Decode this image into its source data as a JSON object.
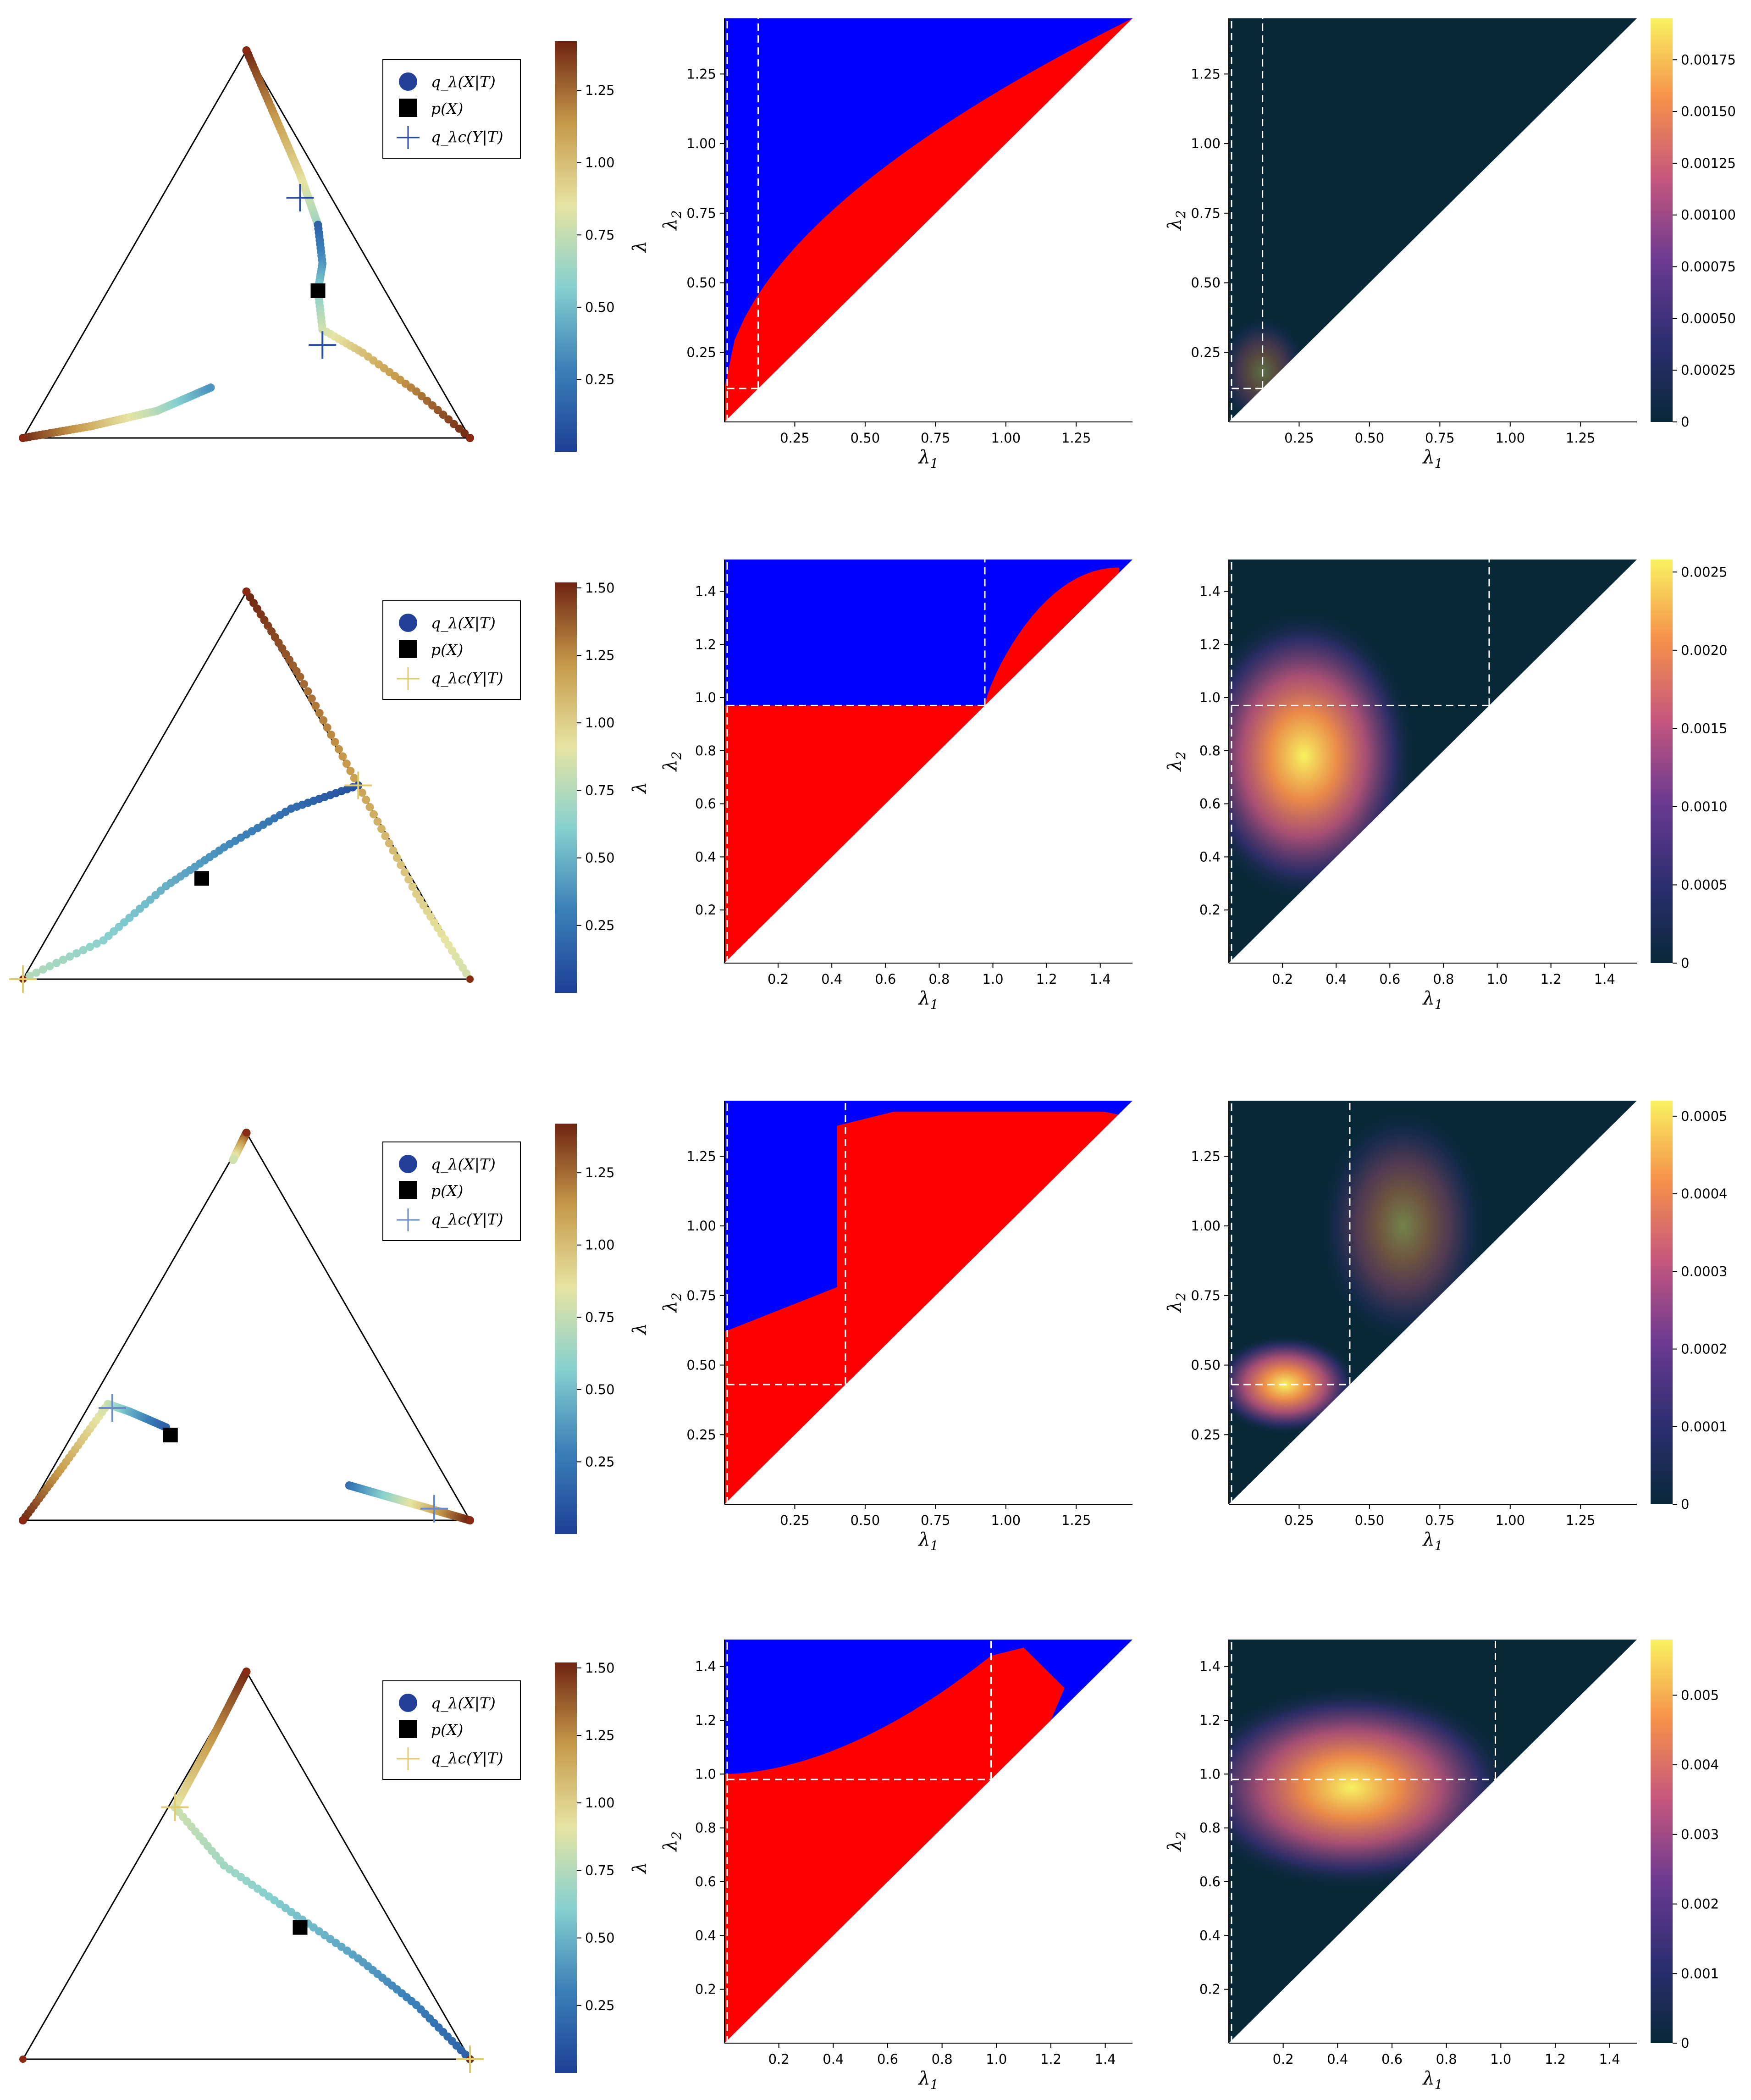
{
  "legend": {
    "entry1": "q_λ(X|T)",
    "entry2": "p(X)",
    "entry3": "q_λc(Y|T)"
  },
  "colors": {
    "blue_region": "#0000ff",
    "red_region": "#ff0000",
    "dark_bg": "#082838",
    "triangle_edge": "#000000"
  },
  "chart_data": [
    {
      "type": "scatter",
      "panel": "simplex-row-1",
      "colorbar": {
        "label": "λ",
        "ticks": [
          "0.25",
          "0.50",
          "0.75",
          "1.00",
          "1.25"
        ],
        "max": 1.42
      },
      "lambda_c_color": "#2b4aa0"
    },
    {
      "type": "area",
      "panel": "region-row-1",
      "xlabel": "λ1",
      "ylabel": "λ2",
      "xticks": [
        "0.25",
        "0.50",
        "0.75",
        "1.00",
        "1.25"
      ],
      "yticks": [
        "0.25",
        "0.50",
        "0.75",
        "1.00",
        "1.25"
      ],
      "xlim": [
        0,
        1.45
      ],
      "ylim": [
        0,
        1.45
      ],
      "dashed_levels": [
        0.12
      ],
      "boundary_exp": 0.55,
      "boundary_coef": 1.0,
      "boundary_b0": 0.12
    },
    {
      "type": "heatmap",
      "panel": "heat-row-1",
      "xlabel": "λ1",
      "ylabel": "λ2",
      "xticks": [
        "0.25",
        "0.50",
        "0.75",
        "1.00",
        "1.25"
      ],
      "yticks": [
        "0.25",
        "0.50",
        "0.75",
        "1.00",
        "1.25"
      ],
      "xlim": [
        0,
        1.45
      ],
      "ylim": [
        0,
        1.45
      ],
      "dashed_levels": [
        0.12
      ],
      "colorbar_ticks": [
        "0",
        "0.00025",
        "0.00050",
        "0.00075",
        "0.00100",
        "0.00125",
        "0.00150",
        "0.00175"
      ],
      "vmax": 0.00195
    },
    {
      "type": "scatter",
      "panel": "simplex-row-2",
      "colorbar": {
        "label": "λ",
        "ticks": [
          "0.25",
          "0.50",
          "0.75",
          "1.00",
          "1.25",
          "1.50"
        ],
        "max": 1.52
      },
      "lambda_c_color": "#e0cc70"
    },
    {
      "type": "area",
      "panel": "region-row-2",
      "xlabel": "λ1",
      "ylabel": "λ2",
      "xticks": [
        "0.2",
        "0.4",
        "0.6",
        "0.8",
        "1.0",
        "1.2",
        "1.4"
      ],
      "yticks": [
        "0.2",
        "0.4",
        "0.6",
        "0.8",
        "1.0",
        "1.2",
        "1.4"
      ],
      "xlim": [
        0,
        1.52
      ],
      "ylim": [
        0,
        1.52
      ],
      "dashed_levels": [
        0.97
      ]
    },
    {
      "type": "heatmap",
      "panel": "heat-row-2",
      "xlabel": "λ1",
      "ylabel": "λ2",
      "xticks": [
        "0.2",
        "0.4",
        "0.6",
        "0.8",
        "1.0",
        "1.2",
        "1.4"
      ],
      "yticks": [
        "0.2",
        "0.4",
        "0.6",
        "0.8",
        "1.0",
        "1.2",
        "1.4"
      ],
      "xlim": [
        0,
        1.52
      ],
      "ylim": [
        0,
        1.52
      ],
      "dashed_levels": [
        0.97
      ],
      "colorbar_ticks": [
        "0",
        "0.0005",
        "0.0010",
        "0.0015",
        "0.0020",
        "0.0025"
      ],
      "vmax": 0.00258
    },
    {
      "type": "scatter",
      "panel": "simplex-row-3",
      "colorbar": {
        "label": "λ",
        "ticks": [
          "0.25",
          "0.50",
          "0.75",
          "1.00",
          "1.25"
        ],
        "max": 1.42
      },
      "lambda_c_color": "#6a8ac8"
    },
    {
      "type": "area",
      "panel": "region-row-3",
      "xlabel": "λ1",
      "ylabel": "λ2",
      "xticks": [
        "0.25",
        "0.50",
        "0.75",
        "1.00",
        "1.25"
      ],
      "yticks": [
        "0.25",
        "0.50",
        "0.75",
        "1.00",
        "1.25"
      ],
      "xlim": [
        0,
        1.45
      ],
      "ylim": [
        0,
        1.45
      ],
      "dashed_levels": [
        0.43
      ]
    },
    {
      "type": "heatmap",
      "panel": "heat-row-3",
      "xlabel": "λ1",
      "ylabel": "λ2",
      "xticks": [
        "0.25",
        "0.50",
        "0.75",
        "1.00",
        "1.25"
      ],
      "yticks": [
        "0.25",
        "0.50",
        "0.75",
        "1.00",
        "1.25"
      ],
      "xlim": [
        0,
        1.45
      ],
      "ylim": [
        0,
        1.45
      ],
      "dashed_levels": [
        0.43
      ],
      "colorbar_ticks": [
        "0",
        "0.0001",
        "0.0002",
        "0.0003",
        "0.0004",
        "0.0005"
      ],
      "vmax": 0.00052
    },
    {
      "type": "scatter",
      "panel": "simplex-row-4",
      "colorbar": {
        "label": "λ",
        "ticks": [
          "0.25",
          "0.50",
          "0.75",
          "1.00",
          "1.25",
          "1.50"
        ],
        "max": 1.52
      },
      "lambda_c_color": "#e0cc70"
    },
    {
      "type": "area",
      "panel": "region-row-4",
      "xlabel": "λ1",
      "ylabel": "λ2",
      "xticks": [
        "0.2",
        "0.4",
        "0.6",
        "0.8",
        "1.0",
        "1.2",
        "1.4"
      ],
      "yticks": [
        "0.2",
        "0.4",
        "0.6",
        "0.8",
        "1.0",
        "1.2",
        "1.4"
      ],
      "xlim": [
        0,
        1.5
      ],
      "ylim": [
        0,
        1.5
      ],
      "dashed_levels": [
        0.98
      ]
    },
    {
      "type": "heatmap",
      "panel": "heat-row-4",
      "xlabel": "λ1",
      "ylabel": "λ2",
      "xticks": [
        "0.2",
        "0.4",
        "0.6",
        "0.8",
        "1.0",
        "1.2",
        "1.4"
      ],
      "yticks": [
        "0.2",
        "0.4",
        "0.6",
        "0.8",
        "1.0",
        "1.2",
        "1.4"
      ],
      "xlim": [
        0,
        1.5
      ],
      "ylim": [
        0,
        1.5
      ],
      "dashed_levels": [
        0.98
      ],
      "colorbar_ticks": [
        "0",
        "0.001",
        "0.002",
        "0.003",
        "0.004",
        "0.005"
      ],
      "vmax": 0.0058
    }
  ]
}
